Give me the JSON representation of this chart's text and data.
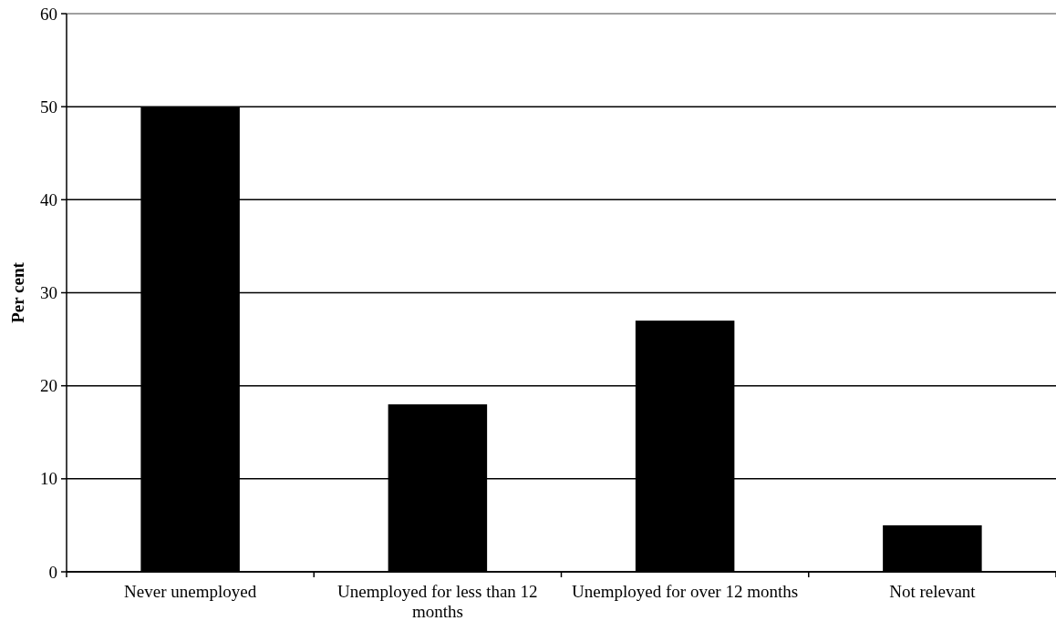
{
  "chart_data": {
    "type": "bar",
    "ylabel": "Per cent",
    "categories": [
      "Never unemployed",
      "Unemployed for less than 12 months",
      "Unemployed for over 12 months",
      "Not relevant"
    ],
    "values": [
      50,
      18,
      27,
      5
    ],
    "color": "#000000",
    "ylim": [
      0,
      60
    ],
    "yticks": [
      0,
      10,
      20,
      30,
      40,
      50,
      60
    ],
    "grid": "y"
  }
}
